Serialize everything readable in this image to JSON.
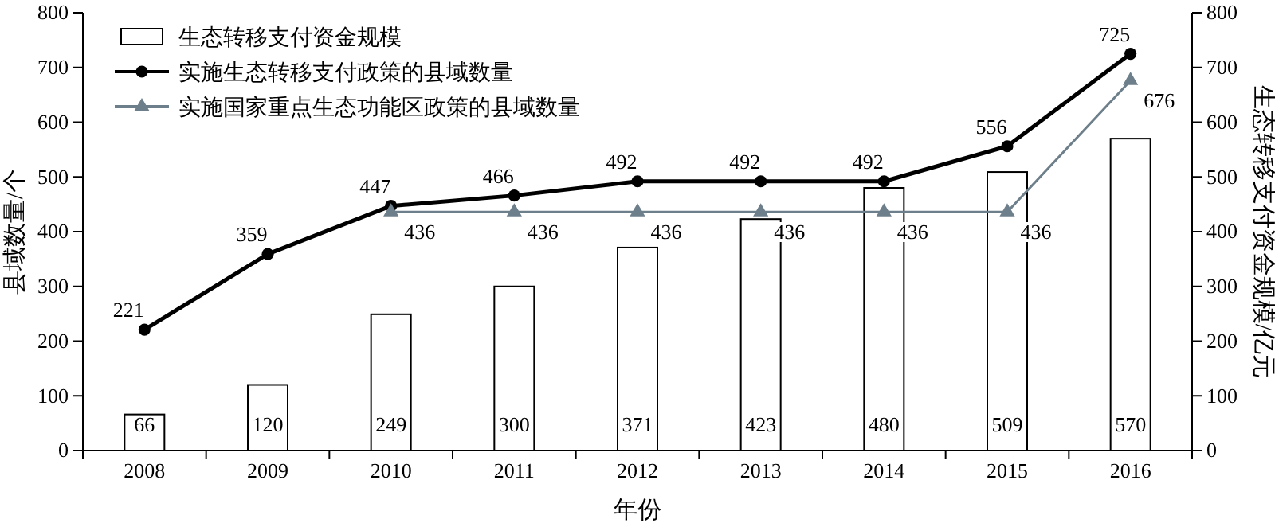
{
  "chart_data": {
    "type": "bar",
    "xlabel": "年份",
    "ylabel": "县域数量/个",
    "y2label": "生态转移支付资金规模/亿元",
    "categories": [
      "2008",
      "2009",
      "2010",
      "2011",
      "2012",
      "2013",
      "2014",
      "2015",
      "2016"
    ],
    "ylim": [
      0,
      800
    ],
    "yticks": [
      0,
      100,
      200,
      300,
      400,
      500,
      600,
      700,
      800
    ],
    "y2lim": [
      0,
      800
    ],
    "y2ticks": [
      0,
      100,
      200,
      300,
      400,
      500,
      600,
      700,
      800
    ],
    "series": [
      {
        "name": "生态转移支付资金规模",
        "axis": "y2",
        "color": "#ffffff",
        "values": [
          66,
          120,
          249,
          300,
          371,
          423,
          480,
          509,
          570
        ]
      },
      {
        "name": "实施生态转移支付政策的县域数量",
        "type": "line",
        "marker": "circle",
        "color": "#000000",
        "values": [
          221,
          359,
          447,
          466,
          492,
          492,
          492,
          556,
          725
        ]
      },
      {
        "name": "实施国家重点生态功能区政策的县域数量",
        "type": "line",
        "marker": "triangle",
        "color": "#6e7f8c",
        "values": [
          null,
          null,
          436,
          436,
          436,
          436,
          436,
          436,
          676
        ]
      }
    ],
    "data_labels": true,
    "legend": "top left",
    "grid": false
  }
}
